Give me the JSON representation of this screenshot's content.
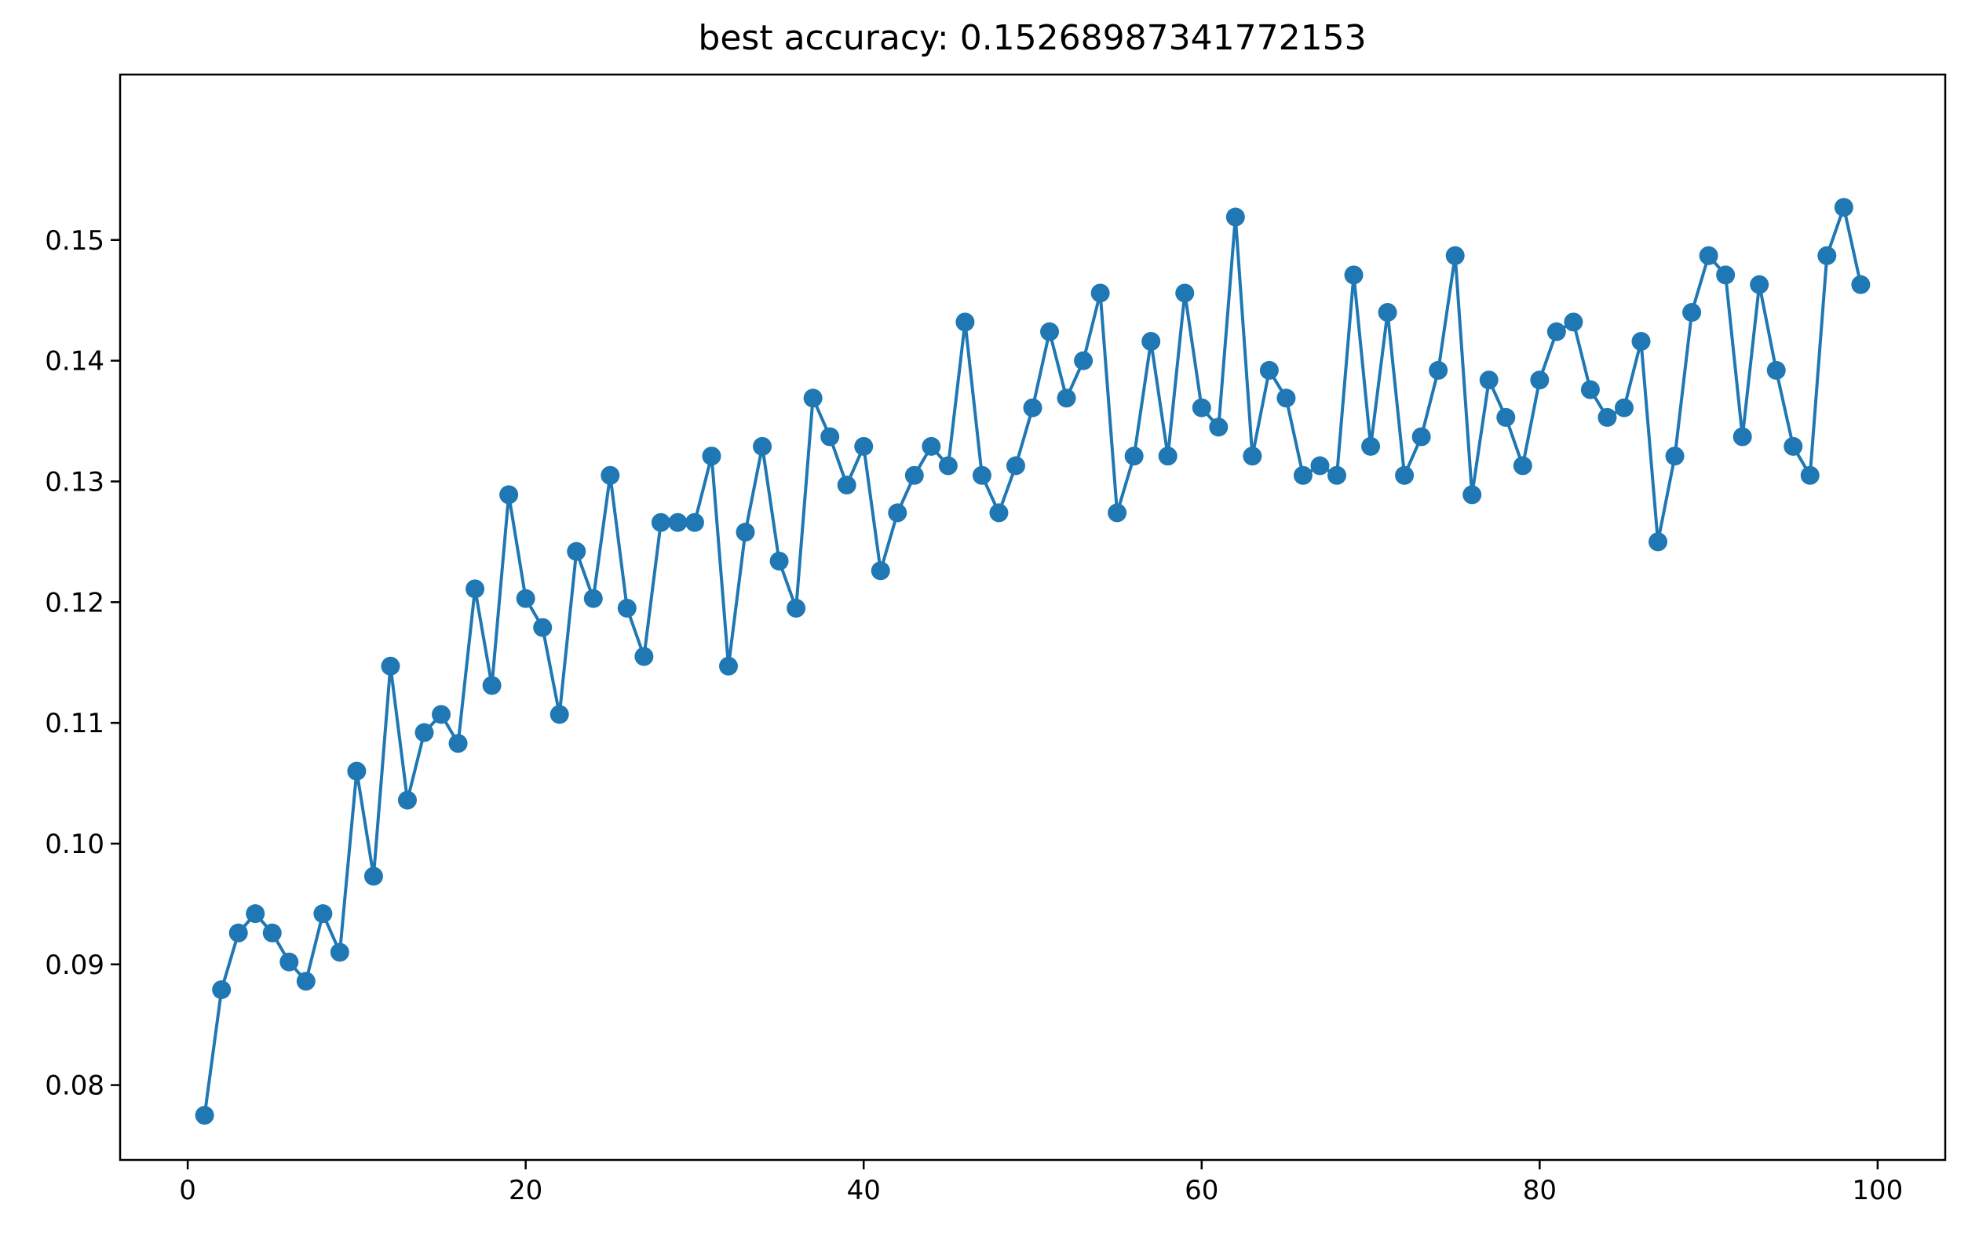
{
  "chart_data": {
    "type": "line",
    "title": "best accuracy: 0.15268987341772153",
    "xlabel": "",
    "ylabel": "",
    "xlim": [
      -4,
      104
    ],
    "ylim": [
      0.0738,
      0.1637
    ],
    "xticks": [
      0,
      20,
      40,
      60,
      80,
      100
    ],
    "yticks": [
      0.08,
      0.09,
      0.1,
      0.11,
      0.12,
      0.13,
      0.14,
      0.15
    ],
    "xtick_labels": [
      "0",
      "20",
      "40",
      "60",
      "80",
      "100"
    ],
    "ytick_labels": [
      "0.08",
      "0.09",
      "0.10",
      "0.11",
      "0.12",
      "0.13",
      "0.14",
      "0.15"
    ],
    "grid": false,
    "legend": "none",
    "marker": "circle",
    "color": "#1f77b4",
    "series": [
      {
        "x": [
          1,
          2,
          3,
          4,
          5,
          6,
          7,
          8,
          9,
          10,
          11,
          12,
          13,
          14,
          15,
          16,
          17,
          18,
          19,
          20,
          21,
          22,
          23,
          24,
          25,
          26,
          27,
          28,
          29,
          30,
          31,
          32,
          33,
          34,
          35,
          36,
          37,
          38,
          39,
          40,
          41,
          42,
          43,
          44,
          45,
          46,
          47,
          48,
          49,
          50,
          51,
          52,
          53,
          54,
          55,
          56,
          57,
          58,
          59,
          60,
          61,
          62,
          63,
          64,
          65,
          66,
          67,
          68,
          69,
          70,
          71,
          72,
          73,
          74,
          75,
          76,
          77,
          78,
          79,
          80,
          81,
          82,
          83,
          84,
          85,
          86,
          87,
          88,
          89,
          90,
          91,
          92,
          93,
          94,
          95,
          96,
          97,
          98,
          99
        ],
        "values": [
          0.0775,
          0.0879,
          0.0926,
          0.0942,
          0.0926,
          0.0902,
          0.0886,
          0.0942,
          0.091,
          0.106,
          0.0973,
          0.1147,
          0.1036,
          0.1092,
          0.1107,
          0.1083,
          0.1211,
          0.1131,
          0.1289,
          0.1203,
          0.1179,
          0.1107,
          0.1242,
          0.1203,
          0.1305,
          0.1195,
          0.1155,
          0.1266,
          0.1266,
          0.1266,
          0.1321,
          0.1147,
          0.1258,
          0.1329,
          0.1234,
          0.1195,
          0.1369,
          0.1337,
          0.1297,
          0.1329,
          0.1226,
          0.1274,
          0.1305,
          0.1329,
          0.1313,
          0.1432,
          0.1305,
          0.1274,
          0.1313,
          0.1361,
          0.1424,
          0.1369,
          0.14,
          0.1456,
          0.1274,
          0.1321,
          0.1416,
          0.1321,
          0.1456,
          0.1361,
          0.1345,
          0.1519,
          0.1321,
          0.1392,
          0.1369,
          0.1305,
          0.1313,
          0.1305,
          0.1471,
          0.1329,
          0.144,
          0.1305,
          0.1337,
          0.1392,
          0.1487,
          0.1289,
          0.1384,
          0.1353,
          0.1313,
          0.1384,
          0.1424,
          0.1432,
          0.1376,
          0.1353,
          0.1361,
          0.1416,
          0.125,
          0.1321,
          0.144,
          0.1487,
          0.1471,
          0.1337,
          0.1463,
          0.1392,
          0.1329,
          0.1305,
          0.1487,
          0.1527,
          0.1463
        ]
      }
    ]
  }
}
